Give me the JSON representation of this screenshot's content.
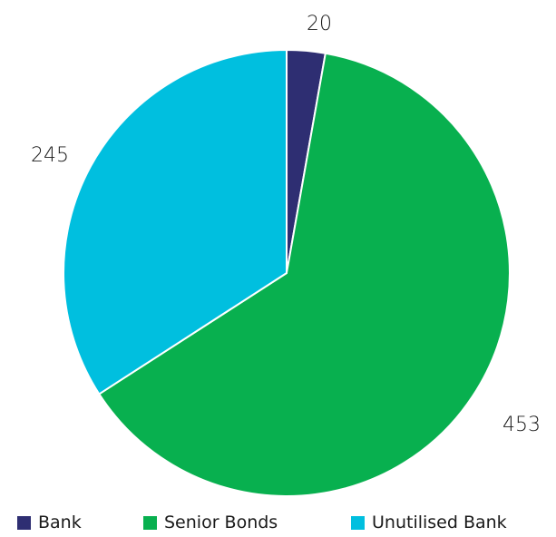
{
  "chart_data": {
    "type": "pie",
    "title": "",
    "start_angle_deg": 0,
    "direction": "clockwise",
    "slices": [
      {
        "label": "Bank",
        "value": 20,
        "color": "#2e2e72"
      },
      {
        "label": "Senior Bonds",
        "value": 453,
        "color": "#08b04f"
      },
      {
        "label": "Unutilised Bank",
        "value": 245,
        "color": "#00bfdf"
      }
    ],
    "legend_position": "bottom",
    "data_labels": [
      "20",
      "453",
      "245"
    ]
  }
}
